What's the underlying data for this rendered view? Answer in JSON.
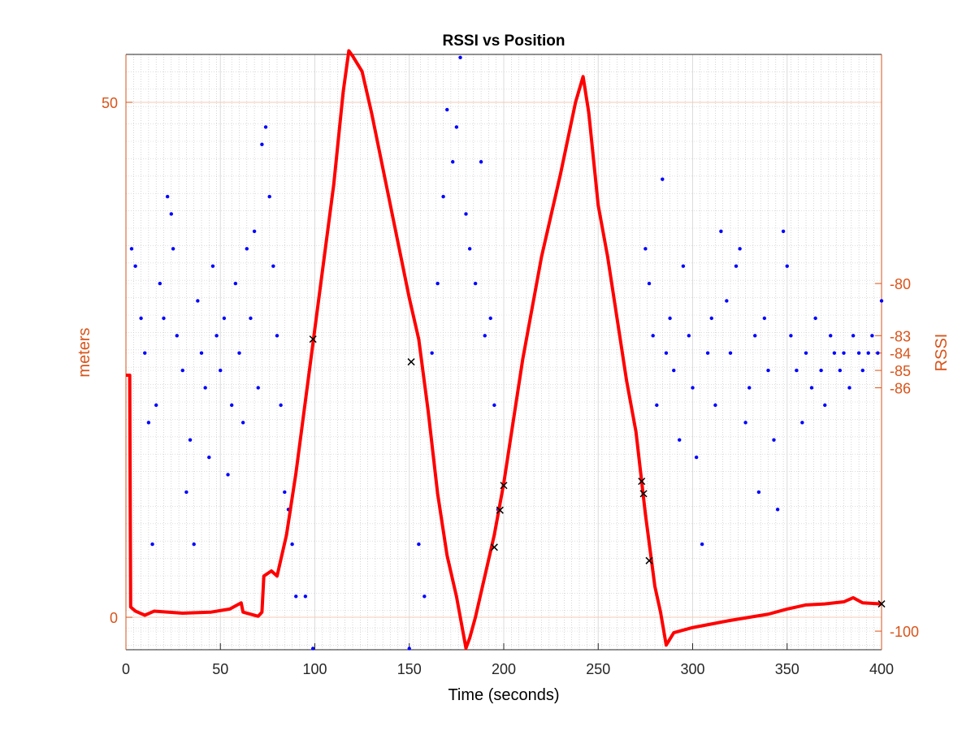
{
  "chart_data": {
    "type": "line",
    "title": "RSSI vs Position",
    "x_label": "Time (seconds)",
    "y_label": "meters",
    "y2_label": "RSSI",
    "xlim": [
      0,
      400
    ],
    "xticks": [
      0,
      50,
      100,
      150,
      200,
      250,
      300,
      350,
      400
    ],
    "ylim": [
      -3.15,
      54.65
    ],
    "yticks": [
      0,
      50
    ],
    "y2lim": [
      -101.07,
      -66.82
    ],
    "y2ticks": [
      -100,
      -86,
      -85,
      -84,
      -83,
      -80
    ],
    "axis_color": "#d95319",
    "grid": true,
    "series": [
      {
        "type": "scatter",
        "marker": "dot",
        "axis": "y2",
        "color": "#0000ff",
        "x": [
          3,
          5,
          8,
          10,
          12,
          14,
          16,
          18,
          20,
          22,
          24,
          25,
          27,
          30,
          32,
          34,
          36,
          38,
          40,
          42,
          44,
          46,
          48,
          50,
          52,
          54,
          56,
          58,
          60,
          62,
          64,
          66,
          68,
          70,
          72,
          74,
          76,
          78,
          80,
          82,
          84,
          86,
          88,
          90,
          95,
          99,
          150,
          155,
          158,
          162,
          165,
          168,
          170,
          173,
          175,
          177,
          180,
          182,
          185,
          188,
          190,
          193,
          195,
          197,
          275,
          277,
          279,
          281,
          284,
          286,
          288,
          290,
          293,
          295,
          298,
          300,
          302,
          305,
          308,
          310,
          312,
          315,
          318,
          320,
          323,
          325,
          328,
          330,
          333,
          335,
          338,
          340,
          343,
          345,
          348,
          350,
          352,
          355,
          358,
          360,
          363,
          365,
          368,
          370,
          373,
          375,
          378,
          380,
          383,
          385,
          388,
          390,
          393,
          395,
          398,
          400
        ],
        "values": [
          -78,
          -79,
          -82,
          -84,
          -88,
          -95,
          -87,
          -80,
          -82,
          -75,
          -76,
          -78,
          -83,
          -85,
          -92,
          -89,
          -95,
          -81,
          -84,
          -86,
          -90,
          -79,
          -83,
          -85,
          -82,
          -91,
          -87,
          -80,
          -84,
          -88,
          -78,
          -82,
          -77,
          -86,
          -72,
          -71,
          -75,
          -79,
          -83,
          -87,
          -92,
          -93,
          -95,
          -98,
          -98,
          -101,
          -101,
          -95,
          -98,
          -84,
          -80,
          -75,
          -70,
          -73,
          -71,
          -67,
          -76,
          -78,
          -80,
          -73,
          -83,
          -82,
          -87,
          -93,
          -78,
          -80,
          -83,
          -87,
          -74,
          -84,
          -82,
          -85,
          -89,
          -79,
          -83,
          -86,
          -90,
          -95,
          -84,
          -82,
          -87,
          -77,
          -81,
          -84,
          -79,
          -78,
          -88,
          -86,
          -83,
          -92,
          -82,
          -85,
          -89,
          -93,
          -77,
          -79,
          -83,
          -85,
          -88,
          -84,
          -86,
          -82,
          -85,
          -87,
          -83,
          -84,
          -85,
          -84,
          -86,
          -83,
          -84,
          -85,
          -84,
          -83,
          -84,
          -81
        ]
      },
      {
        "type": "line",
        "color": "#ff0000",
        "x": [
          0,
          2,
          2.5,
          5,
          10,
          15,
          30,
          45,
          55,
          61,
          62,
          70,
          72,
          73,
          77,
          80,
          85,
          90,
          95,
          100,
          105,
          110,
          115,
          118,
          120,
          125,
          130,
          140,
          150,
          155,
          160,
          165,
          170,
          175,
          180,
          182,
          185,
          190,
          195,
          200,
          205,
          210,
          220,
          230,
          238,
          242,
          245,
          250,
          255,
          260,
          265,
          270,
          275,
          280,
          283,
          286,
          290,
          300,
          320,
          340,
          350,
          360,
          370,
          380,
          385,
          390,
          400
        ],
        "values": [
          23.5,
          23.5,
          1,
          0.6,
          0.2,
          0.6,
          0.4,
          0.5,
          0.8,
          1.4,
          0.5,
          0.1,
          0.5,
          4,
          4.5,
          4,
          8,
          14,
          21,
          28,
          35,
          42,
          51,
          55,
          54.5,
          53,
          49,
          40,
          31,
          27,
          20,
          12,
          6,
          2,
          -3,
          -2,
          0,
          4,
          8,
          13,
          19,
          25,
          35,
          43,
          50,
          52.5,
          49,
          40,
          35,
          29,
          23,
          18,
          10,
          3,
          0.5,
          -2.7,
          -1.5,
          -1,
          -0.3,
          0.3,
          0.8,
          1.2,
          1.3,
          1.5,
          1.9,
          1.4,
          1.3
        ]
      },
      {
        "type": "scatter",
        "marker": "cross",
        "color": "#000000",
        "x": [
          99,
          151,
          195,
          198,
          200,
          273,
          274,
          277,
          400
        ],
        "values": [
          27,
          24.8,
          6.8,
          10.4,
          12.8,
          13.2,
          12,
          5.5,
          1.3
        ]
      }
    ]
  }
}
